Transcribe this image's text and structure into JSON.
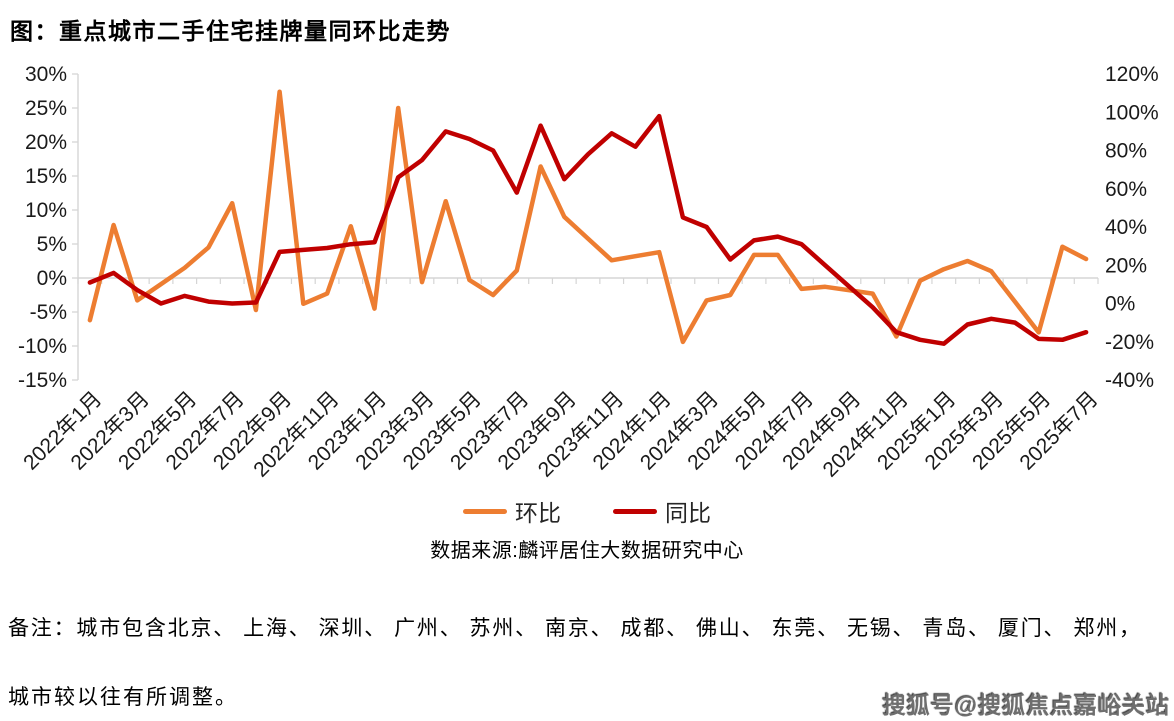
{
  "page": {
    "title": "图：重点城市二手住宅挂牌量同环比走势",
    "note_line1": "备注：城市包含北京、 上海、 深圳、 广州、 苏州、 南京、 成都、 佛山、 东莞、 无锡、 青岛、 厦门、 郑州，",
    "note_line2": "城市较以往有所调整。",
    "watermark": "搜狐号@搜狐焦点嘉峪关站"
  },
  "chart_data": {
    "type": "line",
    "title": "图：重点城市二手住宅挂牌量同环比走势",
    "source": "数据来源:麟评居住大数据研究中心",
    "legend_position": "bottom",
    "grid": "zero-line-only",
    "x_tick_every": 2,
    "months": [
      "2022年1月",
      "2022年2月",
      "2022年3月",
      "2022年4月",
      "2022年5月",
      "2022年6月",
      "2022年7月",
      "2022年8月",
      "2022年9月",
      "2022年10月",
      "2022年11月",
      "2022年12月",
      "2023年1月",
      "2023年2月",
      "2023年3月",
      "2023年4月",
      "2023年5月",
      "2023年6月",
      "2023年7月",
      "2023年8月",
      "2023年9月",
      "2023年10月",
      "2023年11月",
      "2023年12月",
      "2024年1月",
      "2024年2月",
      "2024年3月",
      "2024年4月",
      "2024年5月",
      "2024年6月",
      "2024年7月",
      "2024年8月",
      "2024年9月",
      "2024年10月",
      "2024年11月",
      "2024年12月",
      "2025年1月",
      "2025年2月",
      "2025年3月",
      "2025年4月",
      "2025年5月",
      "2025年6月",
      "2025年7月"
    ],
    "left_axis": {
      "min": -15,
      "max": 30,
      "step": 5,
      "format": "percent"
    },
    "right_axis": {
      "min": -40,
      "max": 120,
      "step": 20,
      "format": "percent"
    },
    "series": [
      {
        "name": "环比",
        "axis": "left",
        "color": "#ED7D31",
        "values": [
          -6.2,
          7.8,
          -3.3,
          -0.9,
          1.5,
          4.5,
          11.0,
          -4.7,
          27.4,
          -3.8,
          -2.3,
          7.6,
          -4.5,
          25.0,
          -0.6,
          11.3,
          -0.3,
          -2.5,
          1.1,
          16.4,
          9.0,
          5.8,
          2.6,
          3.2,
          3.8,
          -9.4,
          -3.3,
          -2.5,
          3.4,
          3.4,
          -1.6,
          -1.3,
          -1.8,
          -2.3,
          -8.6,
          -0.4,
          1.3,
          2.5,
          1.0,
          -3.5,
          -8.0,
          4.6,
          2.8
        ]
      },
      {
        "name": "同比",
        "axis": "right",
        "color": "#C00000",
        "values": [
          11,
          16,
          7,
          0,
          4,
          1,
          0,
          0.5,
          27,
          28,
          29,
          31,
          32,
          66,
          75,
          90,
          86,
          80,
          58,
          93,
          65,
          78,
          89,
          82,
          98,
          45,
          40,
          23,
          33,
          35,
          31,
          20,
          9,
          -2,
          -15,
          -19,
          -21,
          -11,
          -8,
          -10,
          -18.5,
          -19,
          -15
        ]
      }
    ]
  }
}
